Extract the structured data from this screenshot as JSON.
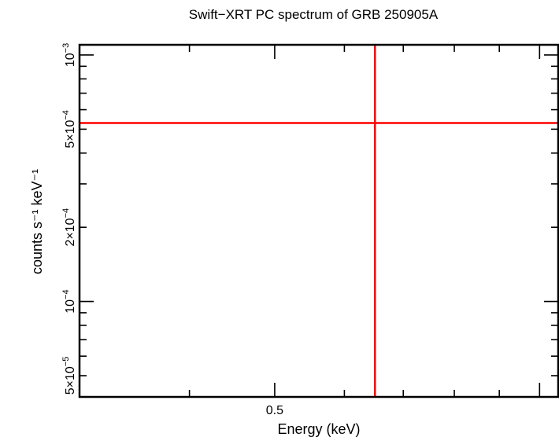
{
  "chart_data": {
    "type": "scatter",
    "title": "Swift−XRT PC spectrum of GRB 250905A",
    "xlabel": "Energy (keV)",
    "ylabel": "counts s⁻¹ keV⁻¹",
    "xscale": "log",
    "yscale": "log",
    "xlim": [
      0.3,
      1.05
    ],
    "ylim": [
      4.1e-05,
      0.0011
    ],
    "x_ticks": [
      {
        "value": 0.5,
        "label": "0.5"
      }
    ],
    "y_ticks": [
      {
        "value": 0.001,
        "base": "10",
        "exp": "−3"
      },
      {
        "value": 0.0005,
        "base": "5×10",
        "exp": "−4"
      },
      {
        "value": 0.0002,
        "base": "2×10",
        "exp": "−4"
      },
      {
        "value": 0.0001,
        "base": "10",
        "exp": "−4"
      },
      {
        "value": 5e-05,
        "base": "5×10",
        "exp": "−5"
      }
    ],
    "grid": false,
    "series": [
      {
        "color": "#ff0000",
        "points": [
          {
            "x": 0.65,
            "x_err": [
              0.3,
              1.05
            ],
            "y": 0.00053,
            "y_err": [
              4.1e-05,
              0.0011
            ]
          }
        ]
      }
    ]
  }
}
